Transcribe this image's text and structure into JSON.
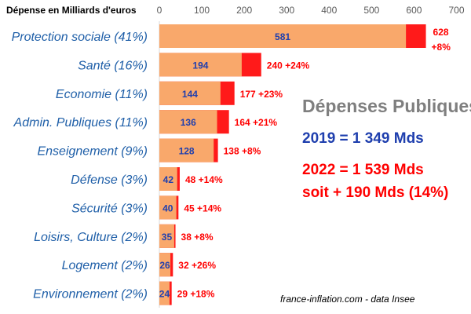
{
  "chart_data": {
    "type": "bar",
    "orientation": "horizontal",
    "title": "Dépense en Milliards d'euros",
    "xlim": [
      0,
      700
    ],
    "x_ticks": [
      "0",
      "100",
      "200",
      "300",
      "400",
      "500",
      "600",
      "700"
    ],
    "categories": [
      "Protection sociale (41%)",
      "Santé (16%)",
      "Economie (11%)",
      "Admin. Publiques (11%)",
      "Enseignement (9%)",
      "Défense (3%)",
      "Sécurité (3%)",
      "Loisirs, Culture (2%)",
      "Logement (2%)",
      "Environnement (2%)"
    ],
    "series": [
      {
        "values": [
          581,
          194,
          144,
          136,
          128,
          42,
          40,
          35,
          26,
          24
        ],
        "color": "#f9a86b"
      },
      {
        "values": [
          628,
          240,
          177,
          164,
          138,
          48,
          45,
          38,
          32,
          29
        ],
        "color": "#ff1a1a"
      }
    ],
    "value_labels_2019": [
      "581",
      "194",
      "144",
      "136",
      "128",
      "42",
      "40",
      "35",
      "26",
      "24"
    ],
    "value_labels_2022": [
      "628",
      "240",
      "177",
      "164",
      "138",
      "48",
      "45",
      "38",
      "32",
      "29"
    ],
    "growth_labels": [
      "+8%",
      "+24%",
      "+23%",
      "+21%",
      "+8%",
      "+14%",
      "+14%",
      "+8%",
      "+26%",
      "+18%"
    ],
    "grid": false,
    "colors": {
      "category_label": "#1f5fa8",
      "label_2019": "#1f3fae",
      "label_2022": "#ff0000",
      "axis_text": "#595959"
    }
  },
  "overlay": {
    "title": "Dépenses Publiques",
    "line_2019": "2019 = 1 349 Mds",
    "line_2022": "2022 = 1 539 Mds",
    "line_diff": "soit + 190 Mds (14%)"
  },
  "source": "france-inflation.com -  data Insee"
}
